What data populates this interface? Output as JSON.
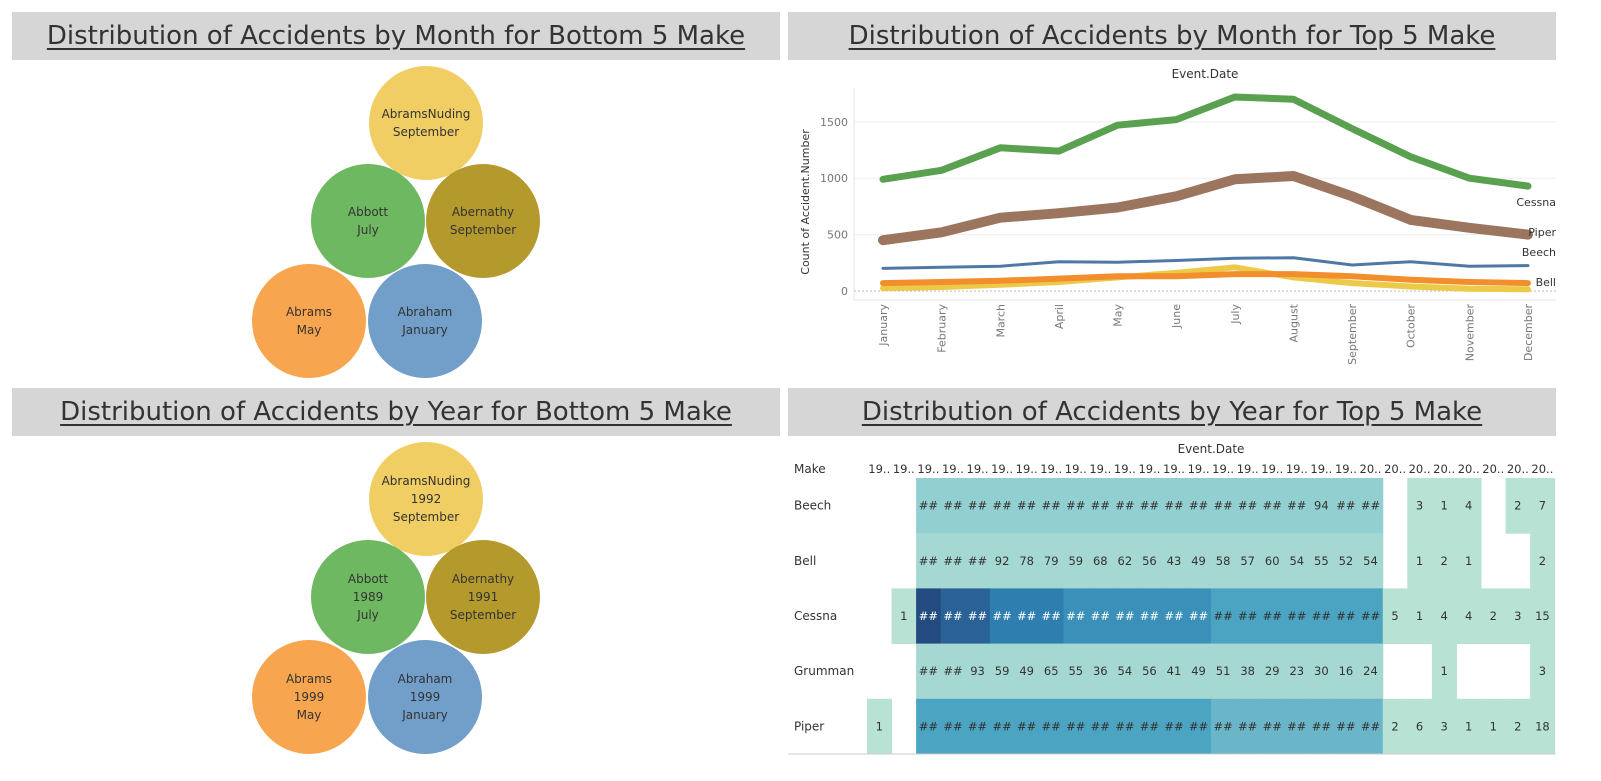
{
  "panels": {
    "bottom_month_title": "Distribution of Accidents by Month for Bottom 5 Make",
    "top_month_title": "Distribution of Accidents by Month for Top 5 Make",
    "bottom_year_title": "Distribution of Accidents by Year for Bottom 5 Make",
    "top_year_title": "Distribution of Accidents by Year for Top 5 Make"
  },
  "colors": {
    "yellow": "#f1ce63",
    "green": "#6fb862",
    "olive": "#b49a2d",
    "orange": "#f8a54f",
    "blue": "#729fca",
    "cessna": "#59a14f",
    "piper": "#9c755f",
    "beech": "#4e79a7",
    "bell": "#f28e2b",
    "grumman": "#edc948"
  },
  "chart_data": [
    {
      "type": "bubble",
      "title": "Distribution of Accidents by Month for Bottom 5 Make",
      "bubbles": [
        {
          "make": "AbramsNuding",
          "month": "September",
          "color": "yellow"
        },
        {
          "make": "Abbott",
          "month": "July",
          "color": "green"
        },
        {
          "make": "Abernathy",
          "month": "September",
          "color": "olive"
        },
        {
          "make": "Abrams",
          "month": "May",
          "color": "orange"
        },
        {
          "make": "Abraham",
          "month": "January",
          "color": "blue"
        }
      ]
    },
    {
      "type": "line",
      "title": "Distribution of Accidents by Month for Top 5 Make",
      "xlabel": "Event.Date",
      "ylabel": "Count of Accident.Number",
      "categories": [
        "January",
        "February",
        "March",
        "April",
        "May",
        "June",
        "July",
        "August",
        "September",
        "October",
        "November",
        "December"
      ],
      "yticks": [
        0,
        500,
        1000,
        1500
      ],
      "ylim": [
        -80,
        1800
      ],
      "series": [
        {
          "name": "Cessna",
          "color": "cessna",
          "width": 7,
          "values": [
            990,
            1070,
            1270,
            1240,
            1470,
            1520,
            1720,
            1700,
            1440,
            1190,
            1000,
            930
          ]
        },
        {
          "name": "Piper",
          "color": "piper",
          "width": 10,
          "values": [
            450,
            520,
            650,
            690,
            740,
            840,
            990,
            1020,
            840,
            630,
            560,
            500
          ]
        },
        {
          "name": "Beech",
          "color": "beech",
          "width": 3,
          "values": [
            200,
            210,
            220,
            260,
            255,
            270,
            290,
            295,
            230,
            260,
            220,
            225
          ]
        },
        {
          "name": null,
          "color": "grumman",
          "width": 6,
          "values": [
            25,
            35,
            55,
            80,
            120,
            160,
            210,
            120,
            70,
            40,
            20,
            15
          ]
        },
        {
          "name": "Bell",
          "color": "bell",
          "width": 6,
          "values": [
            70,
            80,
            90,
            110,
            130,
            130,
            150,
            150,
            130,
            100,
            80,
            70
          ]
        }
      ],
      "series_labels": [
        "Cessna",
        "Piper",
        "Beech",
        "Bell"
      ]
    },
    {
      "type": "bubble",
      "title": "Distribution of Accidents by Year for Bottom 5 Make",
      "bubbles": [
        {
          "make": "AbramsNuding",
          "year": "1992",
          "month": "September",
          "color": "yellow"
        },
        {
          "make": "Abbott",
          "year": "1989",
          "month": "July",
          "color": "green"
        },
        {
          "make": "Abernathy",
          "year": "1991",
          "month": "September",
          "color": "olive"
        },
        {
          "make": "Abrams",
          "year": "1999",
          "month": "May",
          "color": "orange"
        },
        {
          "make": "Abraham",
          "year": "1999",
          "month": "January",
          "color": "blue"
        }
      ]
    },
    {
      "type": "heatmap",
      "title": "Distribution of Accidents by Year for Top 5 Make",
      "xlabel": "Event.Date",
      "row_header": "Make",
      "columns": [
        "19..",
        "19..",
        "19..",
        "19..",
        "19..",
        "19..",
        "19..",
        "19..",
        "19..",
        "19..",
        "19..",
        "19..",
        "19..",
        "19..",
        "19..",
        "19..",
        "19..",
        "19..",
        "19..",
        "19..",
        "20..",
        "20..",
        "20..",
        "20..",
        "20..",
        "20..",
        "20..",
        "20.."
      ],
      "rows": [
        {
          "make": "Beech",
          "cells": [
            "",
            "",
            "##",
            "##",
            "##",
            "##",
            "##",
            "##",
            "##",
            "##",
            "##",
            "##",
            "##",
            "##",
            "##",
            "##",
            "##",
            "##",
            "94",
            "##",
            "##",
            "",
            "3",
            "1",
            "4",
            "",
            "2",
            "7"
          ],
          "levels": [
            0,
            0,
            3,
            3,
            3,
            3,
            3,
            3,
            3,
            3,
            3,
            3,
            3,
            3,
            3,
            3,
            3,
            3,
            3,
            3,
            3,
            0,
            1,
            1,
            1,
            0,
            1,
            1
          ]
        },
        {
          "make": "Bell",
          "cells": [
            "",
            "",
            "##",
            "##",
            "##",
            "92",
            "78",
            "79",
            "59",
            "68",
            "62",
            "56",
            "43",
            "49",
            "58",
            "57",
            "60",
            "54",
            "55",
            "52",
            "54",
            "",
            "1",
            "2",
            "1",
            "",
            "",
            "2"
          ],
          "levels": [
            0,
            0,
            2,
            2,
            2,
            2,
            2,
            2,
            2,
            2,
            2,
            2,
            2,
            2,
            2,
            2,
            2,
            2,
            2,
            2,
            2,
            0,
            1,
            1,
            1,
            0,
            0,
            1
          ]
        },
        {
          "make": "Cessna",
          "cells": [
            "",
            "1",
            "##",
            "##",
            "##",
            "##",
            "##",
            "##",
            "##",
            "##",
            "##",
            "##",
            "##",
            "##",
            "##",
            "##",
            "##",
            "##",
            "##",
            "##",
            "##",
            "5",
            "1",
            "4",
            "4",
            "2",
            "3",
            "15"
          ],
          "levels": [
            0,
            1,
            9,
            8,
            8,
            7,
            7,
            7,
            6,
            6,
            6,
            6,
            6,
            6,
            5,
            5,
            5,
            5,
            5,
            5,
            5,
            1,
            1,
            1,
            1,
            1,
            1,
            1
          ]
        },
        {
          "make": "Grumman",
          "cells": [
            "",
            "",
            "##",
            "##",
            "93",
            "59",
            "49",
            "65",
            "55",
            "36",
            "54",
            "56",
            "41",
            "49",
            "51",
            "38",
            "29",
            "23",
            "30",
            "16",
            "24",
            "",
            "",
            "1",
            "",
            "",
            "",
            "3"
          ],
          "levels": [
            0,
            0,
            2,
            2,
            2,
            2,
            2,
            2,
            2,
            2,
            2,
            2,
            2,
            2,
            2,
            2,
            2,
            2,
            2,
            2,
            2,
            0,
            0,
            1,
            0,
            0,
            0,
            1
          ]
        },
        {
          "make": "Piper",
          "cells": [
            "1",
            "",
            "##",
            "##",
            "##",
            "##",
            "##",
            "##",
            "##",
            "##",
            "##",
            "##",
            "##",
            "##",
            "##",
            "##",
            "##",
            "##",
            "##",
            "##",
            "##",
            "2",
            "6",
            "3",
            "1",
            "1",
            "2",
            "18"
          ],
          "levels": [
            1,
            0,
            5,
            5,
            5,
            5,
            5,
            5,
            5,
            5,
            5,
            5,
            5,
            5,
            4,
            4,
            4,
            4,
            4,
            4,
            4,
            1,
            1,
            1,
            1,
            1,
            1,
            1
          ]
        }
      ]
    }
  ]
}
